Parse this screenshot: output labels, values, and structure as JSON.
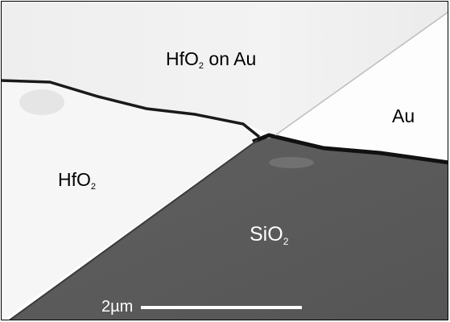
{
  "labels": {
    "hfo2_on_au": {
      "prefix": "HfO",
      "subscript": "2",
      "suffix": " on Au"
    },
    "au": "Au",
    "hfo2": {
      "prefix": "HfO",
      "subscript": "2"
    },
    "sio2": {
      "prefix": "SiO",
      "subscript": "2"
    }
  },
  "scale_bar": {
    "label": "2µm"
  },
  "colors": {
    "hfo2_on_au": "#f2f2f2",
    "au": "#fdfdfd",
    "hfo2": "#f7f7f7",
    "sio2": "#5b5b5b",
    "boundary": "#1a1a1a"
  }
}
